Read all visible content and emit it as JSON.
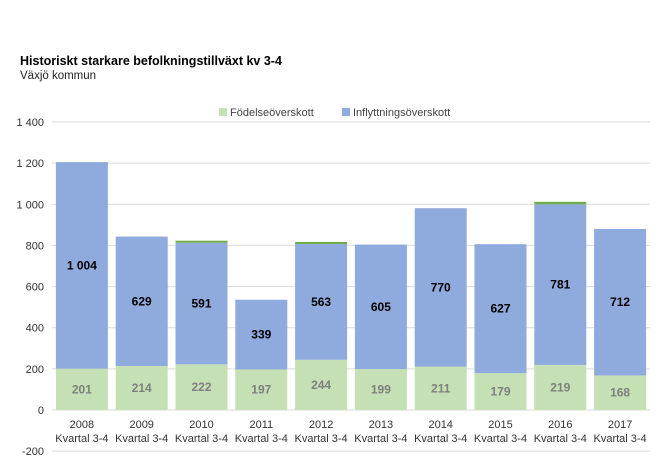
{
  "chart_data": {
    "type": "bar",
    "stacked": true,
    "title": "Historiskt starkare befolkningstillväxt kv 3-4",
    "subtitle": "Växjö kommun",
    "categories": [
      [
        "2008",
        "Kvartal 3-4"
      ],
      [
        "2009",
        "Kvartal 3-4"
      ],
      [
        "2010",
        "Kvartal 3-4"
      ],
      [
        "2011",
        "Kvartal 3-4"
      ],
      [
        "2012",
        "Kvartal 3-4"
      ],
      [
        "2013",
        "Kvartal 3-4"
      ],
      [
        "2014",
        "Kvartal 3-4"
      ],
      [
        "2015",
        "Kvartal 3-4"
      ],
      [
        "2016",
        "Kvartal 3-4"
      ],
      [
        "2017",
        "Kvartal 3-4"
      ]
    ],
    "series": [
      {
        "name": "Födelseöverskott",
        "color": "#c5e0b4",
        "values": [
          201,
          214,
          222,
          197,
          244,
          199,
          211,
          179,
          219,
          168
        ],
        "labels": [
          "201",
          "214",
          "222",
          "197",
          "244",
          "199",
          "211",
          "179",
          "219",
          "168"
        ]
      },
      {
        "name": "Inflyttningsöverskott",
        "color": "#8faadc",
        "values": [
          1004,
          629,
          591,
          339,
          563,
          605,
          770,
          627,
          781,
          712
        ],
        "labels": [
          "1 004",
          "629",
          "591",
          "339",
          "563",
          "605",
          "770",
          "627",
          "781",
          "712"
        ]
      }
    ],
    "top_accent": {
      "color": "#70ad47",
      "values": [
        0,
        0,
        10,
        0,
        10,
        0,
        0,
        0,
        12,
        0
      ]
    },
    "ylim": [
      -200,
      1400
    ],
    "yticks": [
      -200,
      0,
      200,
      400,
      600,
      800,
      1000,
      1200,
      1400
    ],
    "ytick_labels": [
      "-200",
      "0",
      "200",
      "400",
      "600",
      "800",
      "1 000",
      "1 200",
      "1 400"
    ],
    "grid": true,
    "gridline_color": "#d9d9d9",
    "legend_position": "top-center"
  }
}
